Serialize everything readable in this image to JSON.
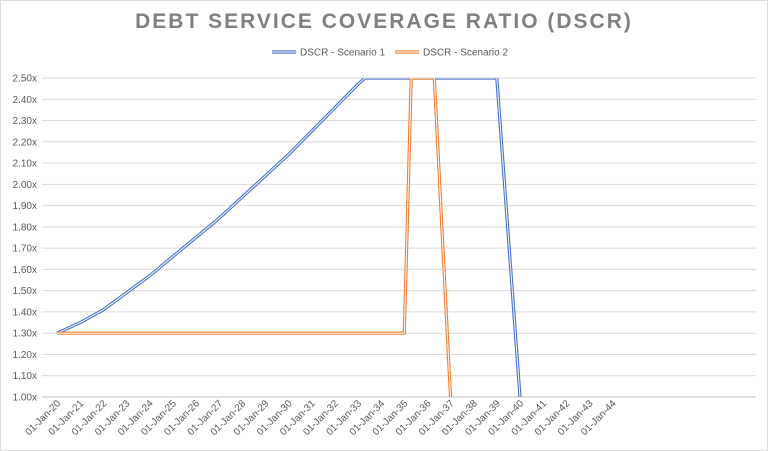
{
  "chart_data": {
    "type": "line",
    "title": "DEBT SERVICE COVERAGE RATIO (DSCR)",
    "xlabel": "",
    "ylabel": "",
    "x_tick_labels": [
      "01-Jan-20",
      "01-Jan-21",
      "01-Jan-22",
      "01-Jan-23",
      "01-Jan-24",
      "01-Jan-25",
      "01-Jan-26",
      "01-Jan-27",
      "01-Jan-28",
      "01-Jan-29",
      "01-Jan-30",
      "01-Jan-31",
      "01-Jan-32",
      "01-Jan-33",
      "01-Jan-34",
      "01-Jan-35",
      "01-Jan-36",
      "01-Jan-37",
      "01-Jan-38",
      "01-Jan-39",
      "01-Jan-40",
      "01-Jan-41",
      "01-Jan-42",
      "01-Jan-43",
      "01-Jan-44"
    ],
    "y_tick_labels": [
      "1.00x",
      "1.10x",
      "1.20x",
      "1.30x",
      "1.40x",
      "1.50x",
      "1.60x",
      "1.70x",
      "1.80x",
      "1.90x",
      "2.00x",
      "2.10x",
      "2.20x",
      "2.30x",
      "2.40x",
      "2.50x"
    ],
    "ylim": [
      1.0,
      2.5
    ],
    "grid": true,
    "legend_position": "top",
    "series": [
      {
        "name": "DSCR - Scenario 1",
        "color": "#4472c4",
        "points": [
          [
            "01-Jan-20",
            1.3
          ],
          [
            "01-Jan-21",
            1.35
          ],
          [
            "01-Jan-22",
            1.41
          ],
          [
            "01-Jan-23",
            1.49
          ],
          [
            "01-Jan-24",
            1.57
          ],
          [
            "01-Jan-25",
            1.66
          ],
          [
            "01-Jan-26",
            1.75
          ],
          [
            "01-Jan-27",
            1.84
          ],
          [
            "01-Jan-28",
            1.94
          ],
          [
            "01-Jan-29",
            2.04
          ],
          [
            "01-Jan-30",
            2.14
          ],
          [
            "01-Jan-31",
            2.25
          ],
          [
            "01-Jan-32",
            2.36
          ],
          [
            "01-Jan-33",
            2.47
          ],
          [
            "01-Jan-33.3",
            2.5
          ],
          [
            "01-Jan-39",
            2.5
          ],
          [
            "01-Jan-40",
            1.0
          ]
        ]
      },
      {
        "name": "DSCR - Scenario 2",
        "color": "#ed7d31",
        "points": [
          [
            "01-Jan-20",
            1.3
          ],
          [
            "01-Jan-35",
            1.3
          ],
          [
            "01-Jan-35.3",
            2.5
          ],
          [
            "01-Jan-36.3",
            2.5
          ],
          [
            "01-Jan-37",
            1.0
          ]
        ]
      }
    ]
  }
}
